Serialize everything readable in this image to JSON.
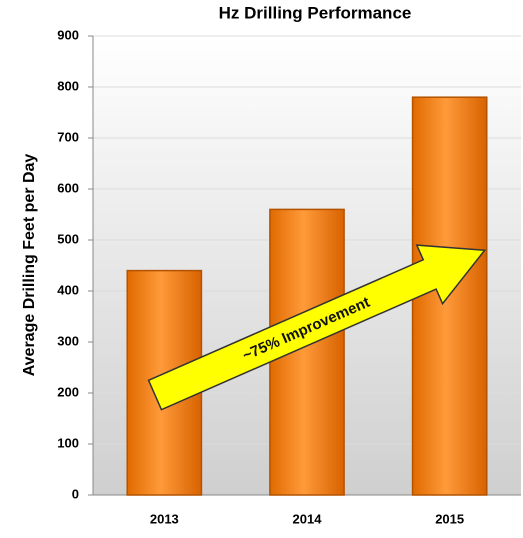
{
  "chart_data": {
    "type": "bar",
    "title": "Hz Drilling Performance",
    "y_label": "Average Drilling Feet per Day",
    "categories": [
      "2013",
      "2014",
      "2015"
    ],
    "values": [
      440,
      560,
      780
    ],
    "color": "#f07d14",
    "ylim": [
      0,
      900
    ],
    "yticks": [
      0,
      100,
      200,
      300,
      400,
      500,
      600,
      700,
      800,
      900
    ],
    "grid": true,
    "annotation": "~75% Improvement"
  }
}
